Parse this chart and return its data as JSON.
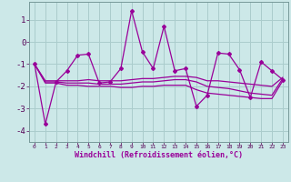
{
  "x": [
    0,
    1,
    2,
    3,
    4,
    5,
    6,
    7,
    8,
    9,
    10,
    11,
    12,
    13,
    14,
    15,
    16,
    17,
    18,
    19,
    20,
    21,
    22,
    23
  ],
  "main_line": [
    -1.0,
    -3.7,
    -1.8,
    -1.3,
    -0.6,
    -0.55,
    -1.85,
    -1.8,
    -1.2,
    1.4,
    -0.45,
    -1.2,
    0.7,
    -1.3,
    -1.2,
    -2.9,
    -2.4,
    -0.5,
    -0.55,
    -1.25,
    -2.5,
    -0.9,
    -1.3,
    -1.7
  ],
  "line_upper": [
    -1.0,
    -1.75,
    -1.75,
    -1.75,
    -1.75,
    -1.7,
    -1.75,
    -1.75,
    -1.75,
    -1.7,
    -1.65,
    -1.65,
    -1.6,
    -1.55,
    -1.55,
    -1.6,
    -1.75,
    -1.75,
    -1.8,
    -1.85,
    -1.9,
    -1.95,
    -2.0,
    -1.6
  ],
  "line_mid": [
    -1.0,
    -1.8,
    -1.8,
    -1.85,
    -1.85,
    -1.85,
    -1.9,
    -1.9,
    -1.9,
    -1.85,
    -1.8,
    -1.8,
    -1.75,
    -1.7,
    -1.7,
    -1.8,
    -2.0,
    -2.05,
    -2.1,
    -2.2,
    -2.3,
    -2.35,
    -2.4,
    -1.65
  ],
  "line_lower": [
    -1.0,
    -1.85,
    -1.85,
    -1.95,
    -1.95,
    -2.0,
    -2.0,
    -2.0,
    -2.05,
    -2.05,
    -2.0,
    -2.0,
    -1.95,
    -1.95,
    -1.95,
    -2.15,
    -2.3,
    -2.35,
    -2.4,
    -2.45,
    -2.5,
    -2.55,
    -2.55,
    -1.75
  ],
  "line_color": "#990099",
  "bg_color": "#cce8e8",
  "grid_color": "#aacccc",
  "xlabel": "Windchill (Refroidissement éolien,°C)",
  "ylim": [
    -4.5,
    1.8
  ],
  "xlim": [
    -0.5,
    23.5
  ],
  "yticks": [
    -4,
    -3,
    -2,
    -1,
    0,
    1
  ],
  "xticks": [
    0,
    1,
    2,
    3,
    4,
    5,
    6,
    7,
    8,
    9,
    10,
    11,
    12,
    13,
    14,
    15,
    16,
    17,
    18,
    19,
    20,
    21,
    22,
    23
  ]
}
